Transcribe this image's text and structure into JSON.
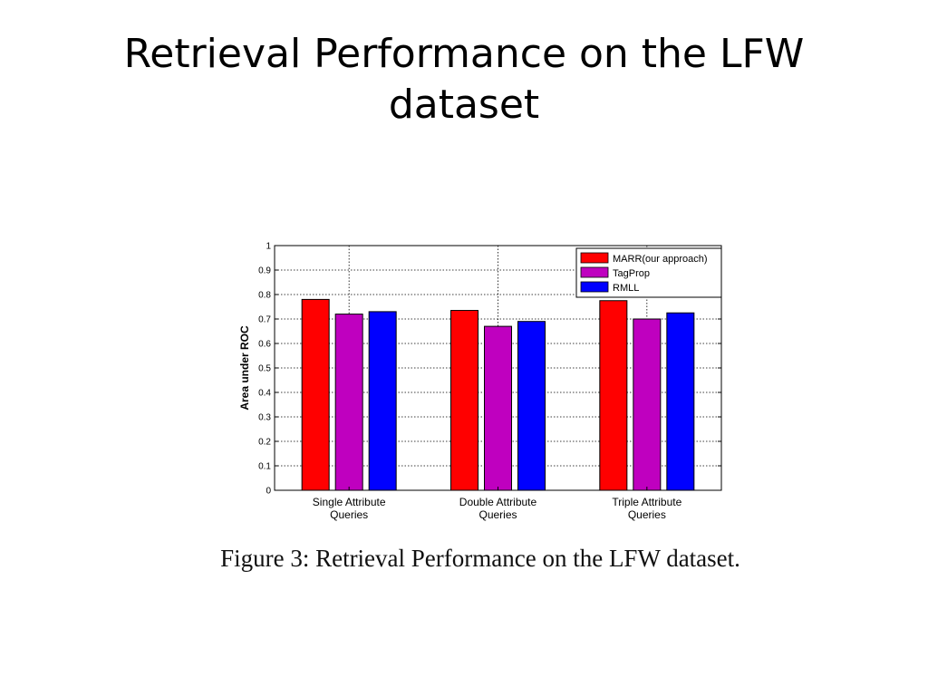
{
  "slide": {
    "title_lines": [
      "Retrieval Performance on the LFW",
      "dataset"
    ]
  },
  "caption": "Figure 3: Retrieval Performance on the LFW dataset.",
  "chart_data": {
    "type": "bar",
    "title": "",
    "ylabel": "Area under ROC",
    "xlabel": "",
    "ylim": [
      0,
      1
    ],
    "yticks": [
      "0",
      "0.1",
      "0.2",
      "0.3",
      "0.4",
      "0.5",
      "0.6",
      "0.7",
      "0.8",
      "0.9",
      "1"
    ],
    "grid": true,
    "legend_position": "top-right",
    "categories": [
      [
        "Single Attribute",
        "Queries"
      ],
      [
        "Double Attribute",
        "Queries"
      ],
      [
        "Triple Attribute",
        "Queries"
      ]
    ],
    "series": [
      {
        "name": "MARR(our approach)",
        "color": "#ff0000",
        "values": [
          0.78,
          0.735,
          0.775
        ]
      },
      {
        "name": "TagProp",
        "color": "#bf00bf",
        "values": [
          0.72,
          0.67,
          0.7
        ]
      },
      {
        "name": "RMLL",
        "color": "#0000ff",
        "values": [
          0.73,
          0.69,
          0.725
        ]
      }
    ]
  }
}
